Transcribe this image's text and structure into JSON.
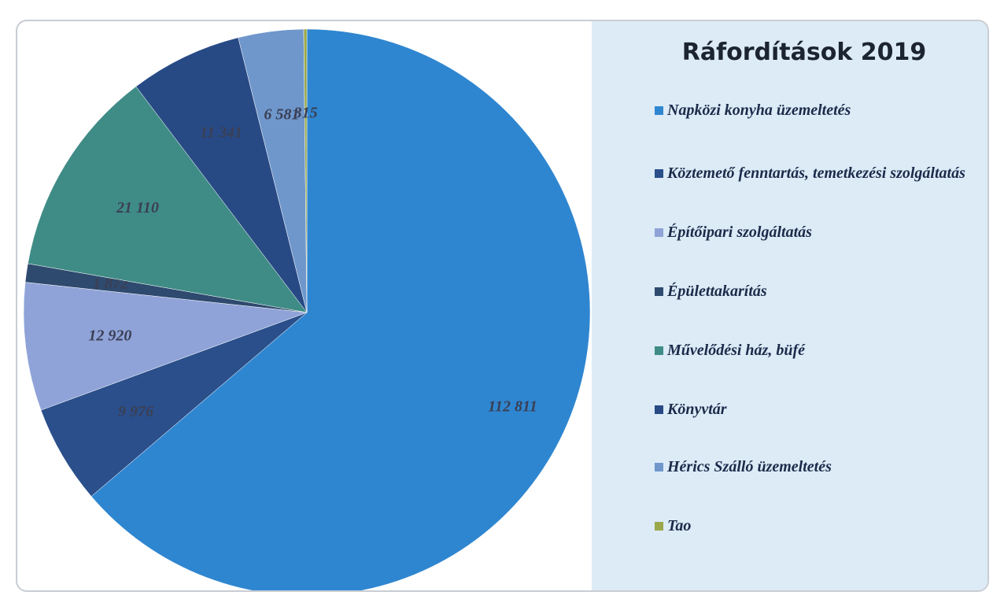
{
  "chart_data": {
    "type": "pie",
    "title": "Ráfordítások 2019",
    "categories": [
      "Napközi konyha üzemeltetés",
      "Köztemető fenntartás, temetkezési szolgáltatás",
      "Építőipari szolgáltatás",
      "Épülettakarítás",
      "Művelődési ház, büfé",
      "Könyvtár",
      "Hérics Szálló üzemeltetés",
      "Tao"
    ],
    "values": [
      112811,
      9976,
      12920,
      1872,
      21110,
      11341,
      6581,
      315
    ],
    "value_labels": [
      "112 811",
      "9 976",
      "12 920",
      "1 872",
      "21 110",
      "11 341",
      "6 581",
      "315"
    ],
    "colors": [
      "#2f86d0",
      "#2a4f8a",
      "#8fa3d8",
      "#2e4a6e",
      "#3f8c86",
      "#274a85",
      "#6f97cc",
      "#9aa84a"
    ],
    "legend": "right"
  }
}
